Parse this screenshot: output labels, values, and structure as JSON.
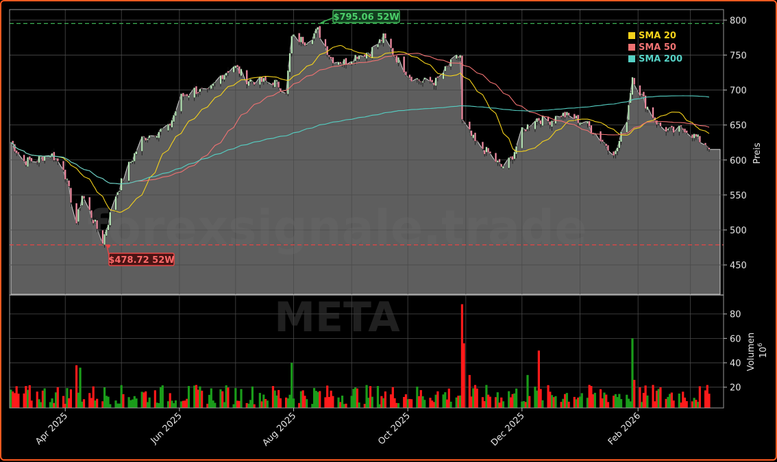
{
  "watermark": {
    "site": "forexsignale.trade",
    "ticker": "META"
  },
  "colors": {
    "background": "#000000",
    "frame": "#ff5a1f",
    "area": "#5e5e5e",
    "grid": "#4a4a4a",
    "sma20": "#f5d21b",
    "sma50": "#f07272",
    "sma200": "#55d0c4",
    "up": "#1a9c1a",
    "down": "#ff1a1a",
    "high": "#3cb054",
    "low": "#e84545"
  },
  "chart_data": {
    "type": "candlestick+volume",
    "x_ticks": [
      "Apr 2025",
      "Jun 2025",
      "Aug 2025",
      "Oct 2025",
      "Dec 2025",
      "Feb 2026"
    ],
    "price_axis": {
      "label": "Preis",
      "range": [
        408,
        815
      ],
      "ticks": [
        450,
        500,
        550,
        600,
        650,
        700,
        750,
        800
      ]
    },
    "volume_axis": {
      "label": "Volumen",
      "exponent": "10",
      "exponent_power": "6",
      "range": [
        3,
        95
      ],
      "ticks": [
        20,
        40,
        60,
        80
      ]
    },
    "legend": {
      "position": "top-right",
      "entries": [
        {
          "name": "SMA 20",
          "color": "#f5d21b"
        },
        {
          "name": "SMA 50",
          "color": "#f07272"
        },
        {
          "name": "SMA 200",
          "color": "#55d0c4"
        }
      ]
    },
    "annotations": {
      "high": {
        "value": 795.06,
        "label": "$795.06 52W",
        "date": "2025-08-14"
      },
      "low": {
        "value": 478.72,
        "label": "$478.72 52W",
        "date": "2025-04-21"
      }
    },
    "start_date": "2025-03-03",
    "end_date": "2026-03-11",
    "close_keypoints": [
      [
        "2025-03-03",
        625
      ],
      [
        "2025-03-10",
        598
      ],
      [
        "2025-03-17",
        600
      ],
      [
        "2025-03-24",
        610
      ],
      [
        "2025-03-31",
        590
      ],
      [
        "2025-04-07",
        510
      ],
      [
        "2025-04-10",
        550
      ],
      [
        "2025-04-15",
        520
      ],
      [
        "2025-04-21",
        484
      ],
      [
        "2025-04-28",
        550
      ],
      [
        "2025-05-05",
        592
      ],
      [
        "2025-05-12",
        630
      ],
      [
        "2025-05-19",
        640
      ],
      [
        "2025-05-26",
        645
      ],
      [
        "2025-06-02",
        690
      ],
      [
        "2025-06-09",
        700
      ],
      [
        "2025-06-16",
        695
      ],
      [
        "2025-06-23",
        720
      ],
      [
        "2025-06-30",
        735
      ],
      [
        "2025-07-07",
        715
      ],
      [
        "2025-07-14",
        712
      ],
      [
        "2025-07-21",
        712
      ],
      [
        "2025-07-28",
        700
      ],
      [
        "2025-07-31",
        775
      ],
      [
        "2025-08-07",
        770
      ],
      [
        "2025-08-14",
        785
      ],
      [
        "2025-08-21",
        745
      ],
      [
        "2025-08-28",
        740
      ],
      [
        "2025-09-04",
        750
      ],
      [
        "2025-09-11",
        755
      ],
      [
        "2025-09-18",
        775
      ],
      [
        "2025-09-25",
        745
      ],
      [
        "2025-10-02",
        720
      ],
      [
        "2025-10-09",
        712
      ],
      [
        "2025-10-16",
        712
      ],
      [
        "2025-10-23",
        735
      ],
      [
        "2025-10-29",
        750
      ],
      [
        "2025-10-30",
        655
      ],
      [
        "2025-11-06",
        625
      ],
      [
        "2025-11-13",
        610
      ],
      [
        "2025-11-20",
        590
      ],
      [
        "2025-11-25",
        600
      ],
      [
        "2025-12-01",
        640
      ],
      [
        "2025-12-08",
        660
      ],
      [
        "2025-12-15",
        655
      ],
      [
        "2025-12-22",
        665
      ],
      [
        "2025-12-29",
        660
      ],
      [
        "2026-01-05",
        650
      ],
      [
        "2026-01-12",
        630
      ],
      [
        "2026-01-20",
        610
      ],
      [
        "2026-01-26",
        660
      ],
      [
        "2026-01-29",
        720
      ],
      [
        "2026-02-05",
        680
      ],
      [
        "2026-02-12",
        650
      ],
      [
        "2026-02-19",
        640
      ],
      [
        "2026-02-26",
        645
      ],
      [
        "2026-03-05",
        630
      ],
      [
        "2026-03-11",
        620
      ]
    ],
    "volume_spikes": [
      [
        "2025-04-07",
        38
      ],
      [
        "2025-04-09",
        36
      ],
      [
        "2025-07-31",
        40
      ],
      [
        "2025-10-30",
        88
      ],
      [
        "2025-10-31",
        56
      ],
      [
        "2025-11-03",
        30
      ],
      [
        "2025-12-04",
        30
      ],
      [
        "2025-12-10",
        50
      ],
      [
        "2026-01-29",
        60
      ],
      [
        "2026-01-30",
        26
      ]
    ]
  }
}
